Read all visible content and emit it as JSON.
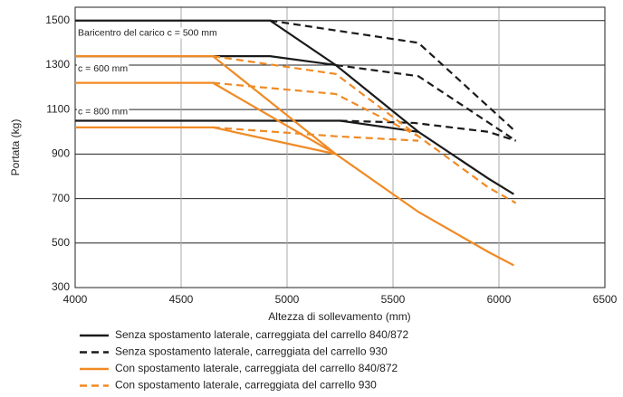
{
  "chart_data": {
    "type": "line",
    "y_label": "Portata (kg)",
    "x_label": "Altezza di sollevamento (mm)",
    "annotations": [
      "Baricentro del carico c = 500 mm",
      "c = 600 mm",
      "c = 800 mm"
    ],
    "xlim": [
      4000,
      6500
    ],
    "xticks": [
      4000,
      4500,
      5000,
      5500,
      6000,
      6500
    ],
    "ylim": [
      300,
      1560
    ],
    "yticks": [
      300,
      500,
      700,
      900,
      1100,
      1300,
      1500
    ],
    "grid": true,
    "legend": "bottom",
    "series": [
      {
        "name": "Senza spostamento laterale, carreggiata del carrello 840/872",
        "color": "#1a1a1a",
        "dashed": false,
        "curves": [
          {
            "x": [
              4000,
              4920,
              5230,
              5620,
              5950,
              6070
            ],
            "values": [
              1500,
              1500,
              1300,
              1000,
              790,
              720
            ]
          },
          {
            "x": [
              4000,
              4920,
              5230
            ],
            "values": [
              1340,
              1340,
              1300
            ]
          },
          {
            "x": [
              4000,
              5250,
              5620
            ],
            "values": [
              1050,
              1050,
              1000
            ]
          }
        ]
      },
      {
        "name": "Senza spostamento laterale, carreggiata del carrello 930",
        "color": "#1a1a1a",
        "dashed": true,
        "curves": [
          {
            "x": [
              4920,
              5620,
              6080
            ],
            "values": [
              1500,
              1400,
              1000
            ]
          },
          {
            "x": [
              5230,
              5620,
              6080
            ],
            "values": [
              1300,
              1250,
              960
            ]
          },
          {
            "x": [
              5250,
              5600,
              5950,
              6080
            ],
            "values": [
              1050,
              1040,
              1000,
              960
            ]
          }
        ]
      },
      {
        "name": "Con spostamento laterale, carreggiata del carrello 840/872",
        "color": "#f08a24",
        "dashed": false,
        "curves": [
          {
            "x": [
              4000,
              4650,
              5230,
              5620,
              5950,
              6070
            ],
            "values": [
              1340,
              1340,
              900,
              640,
              460,
              400
            ]
          },
          {
            "x": [
              4000,
              4650,
              5230
            ],
            "values": [
              1220,
              1220,
              900
            ]
          },
          {
            "x": [
              4000,
              4650,
              5230
            ],
            "values": [
              1020,
              1020,
              900
            ]
          }
        ]
      },
      {
        "name": "Con spostamento laterale, carreggiata del carrello 930",
        "color": "#f08a24",
        "dashed": true,
        "curves": [
          {
            "x": [
              4650,
              5230,
              5620,
              5950,
              6080
            ],
            "values": [
              1340,
              1260,
              980,
              750,
              680
            ]
          },
          {
            "x": [
              4650,
              5230,
              5620
            ],
            "values": [
              1220,
              1170,
              980
            ]
          },
          {
            "x": [
              4650,
              5230,
              5620
            ],
            "values": [
              1020,
              980,
              960
            ]
          }
        ]
      }
    ]
  }
}
